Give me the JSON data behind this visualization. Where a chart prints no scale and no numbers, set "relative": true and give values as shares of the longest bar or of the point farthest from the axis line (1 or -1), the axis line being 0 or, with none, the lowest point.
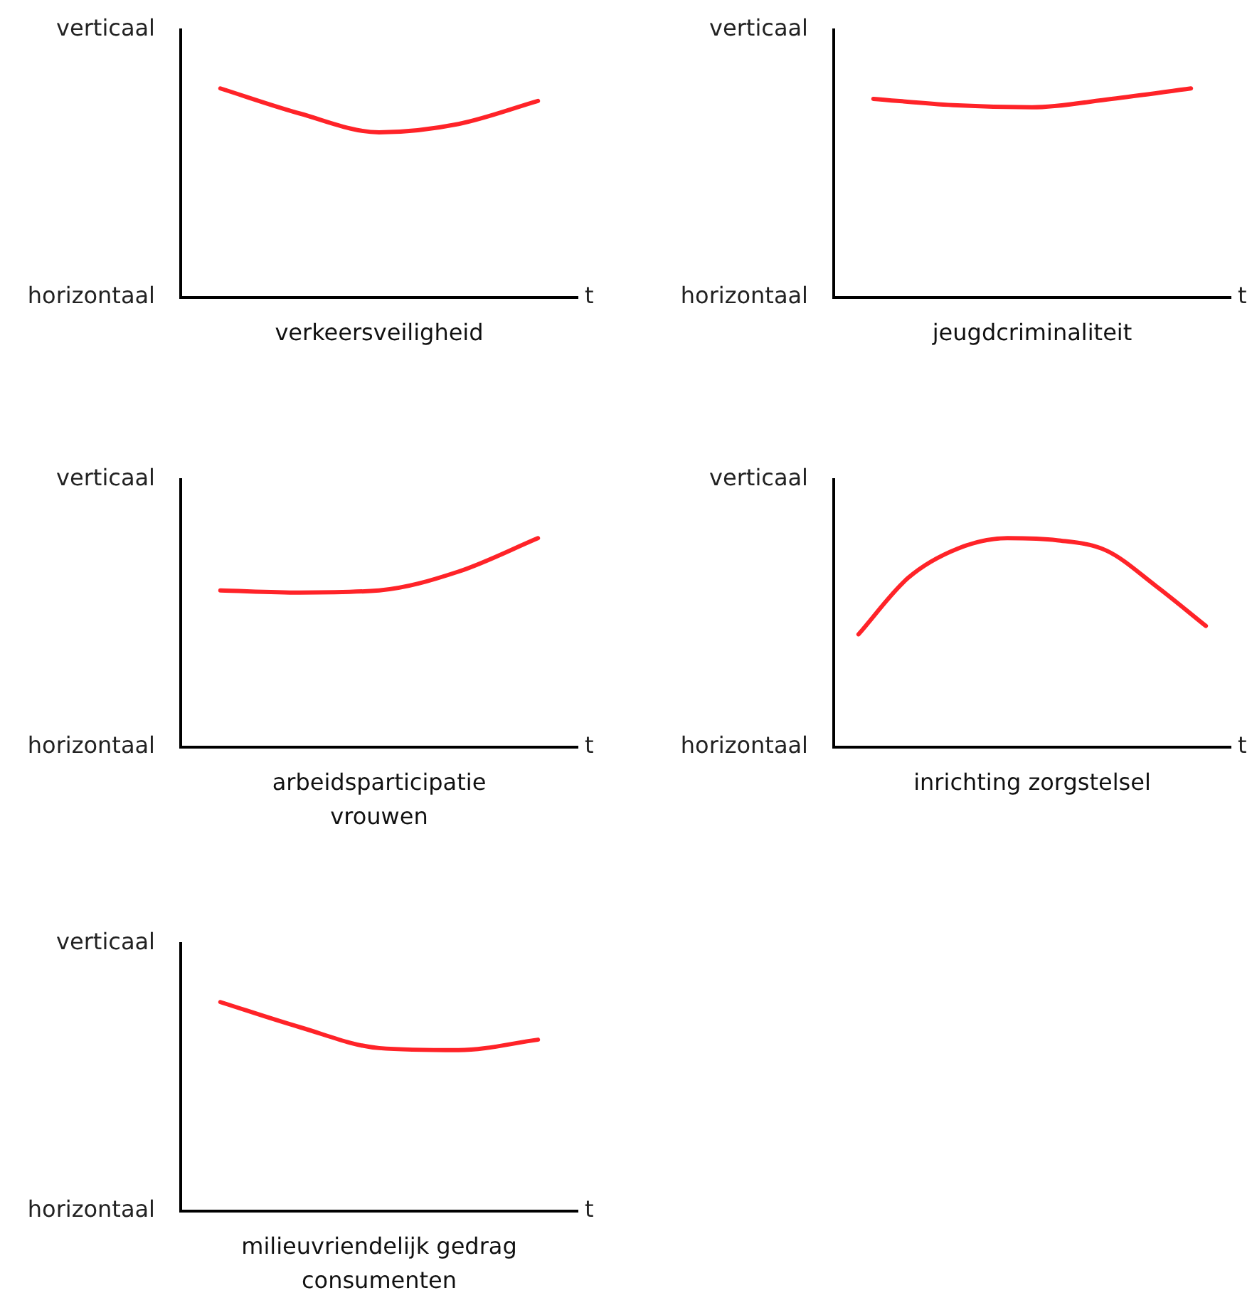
{
  "chart_data": [
    {
      "type": "line",
      "title": "verkeersveiligheid",
      "xlabel": "t",
      "ylabel": "verticaal",
      "annotations": [
        "horizontaal"
      ],
      "relative": true,
      "marker": "none",
      "categories": [
        null,
        null,
        null,
        null,
        null
      ],
      "series": [
        {
          "color": "#ff2328",
          "values": [
            1,
            0.88,
            0.79,
            0.83,
            0.94
          ]
        }
      ]
    },
    {
      "type": "line",
      "title": "jeugdcriminaliteit",
      "xlabel": "t",
      "ylabel": "verticaal",
      "annotations": [
        "horizontaal"
      ],
      "relative": true,
      "marker": "none",
      "categories": [
        null,
        null,
        null,
        null,
        null
      ],
      "series": [
        {
          "color": "#ff2328",
          "values": [
            0.95,
            0.92,
            0.91,
            0.95,
            1
          ]
        }
      ]
    },
    {
      "type": "line",
      "title": "arbeidsparticipatie vrouwen",
      "xlabel": "t",
      "ylabel": "verticaal",
      "annotations": [
        "horizontaal"
      ],
      "relative": true,
      "marker": "none",
      "categories": [
        null,
        null,
        null,
        null,
        null
      ],
      "series": [
        {
          "color": "#ff2328",
          "values": [
            0.75,
            0.74,
            0.75,
            0.84,
            1
          ]
        }
      ]
    },
    {
      "type": "line",
      "title": "inrichting zorgstelsel",
      "xlabel": "t",
      "ylabel": "verticaal",
      "annotations": [
        "horizontaal"
      ],
      "relative": true,
      "marker": "none",
      "categories": [
        null,
        null,
        null,
        null,
        null,
        null,
        null,
        null
      ],
      "series": [
        {
          "color": "#ff2328",
          "values": [
            0.54,
            0.81,
            0.95,
            1,
            0.99,
            0.94,
            0.77,
            0.58
          ]
        }
      ]
    },
    {
      "type": "line",
      "title": "milieuvriendelijk gedrag consumenten",
      "xlabel": "t",
      "ylabel": "verticaal",
      "annotations": [
        "horizontaal"
      ],
      "relative": true,
      "marker": "none",
      "categories": [
        null,
        null,
        null,
        null,
        null
      ],
      "series": [
        {
          "color": "#ff2328",
          "values": [
            1,
            0.88,
            0.78,
            0.77,
            0.82
          ]
        }
      ]
    }
  ]
}
